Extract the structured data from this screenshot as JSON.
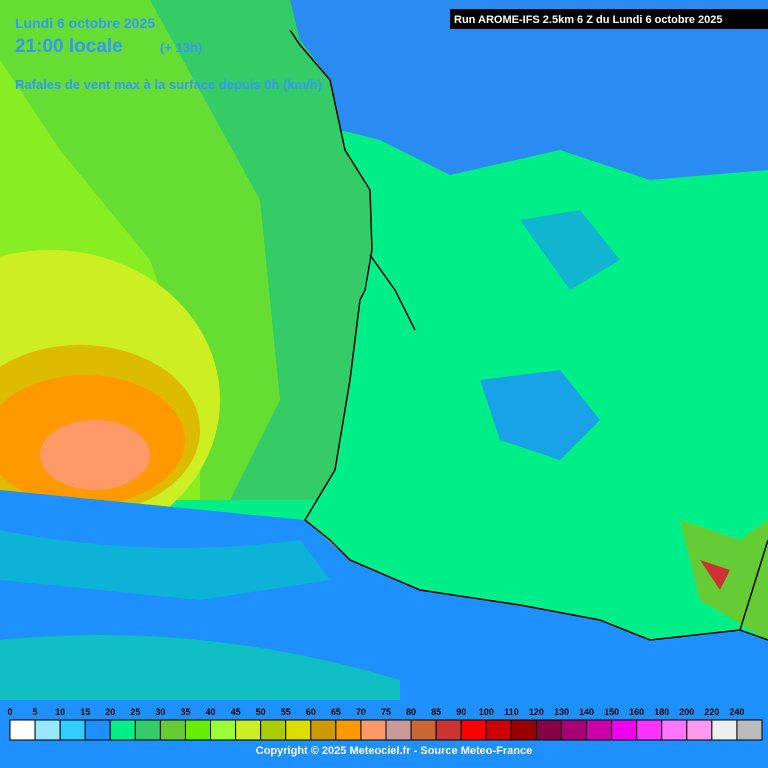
{
  "header": {
    "date": "Lundi 6 octobre 2025",
    "time": "21:00 locale",
    "offset": "(+ 13h)",
    "subtitle": "Rafales de vent max à la surface depuis 0h (km/h)",
    "run": "Run AROME-IFS 2.5km 6 Z du Lundi 6 octobre 2025"
  },
  "legend": {
    "labels": [
      0,
      5,
      10,
      15,
      20,
      25,
      30,
      35,
      40,
      45,
      50,
      55,
      60,
      65,
      70,
      75,
      80,
      85,
      90,
      100,
      110,
      120,
      130,
      140,
      150,
      160,
      180,
      200,
      220,
      240
    ],
    "colors": [
      "#ffffff",
      "#99e6ff",
      "#33ccff",
      "#1e90ff",
      "#00ee88",
      "#33cc66",
      "#66cc33",
      "#66ee00",
      "#99ff33",
      "#ccee22",
      "#aacc00",
      "#dddd00",
      "#cc9900",
      "#ff9900",
      "#ff9966",
      "#cc9999",
      "#cc6633",
      "#cc3333",
      "#ff0000",
      "#cc0000",
      "#990000",
      "#880044",
      "#aa0077",
      "#cc00aa",
      "#ee00ee",
      "#ff33ff",
      "#ff77ff",
      "#ff99ee",
      "#eeeeee",
      "#bbbbbb"
    ]
  },
  "footer": {
    "copyright": "Copyright © 2025 Meteociel.fr - Source Meteo-France"
  }
}
